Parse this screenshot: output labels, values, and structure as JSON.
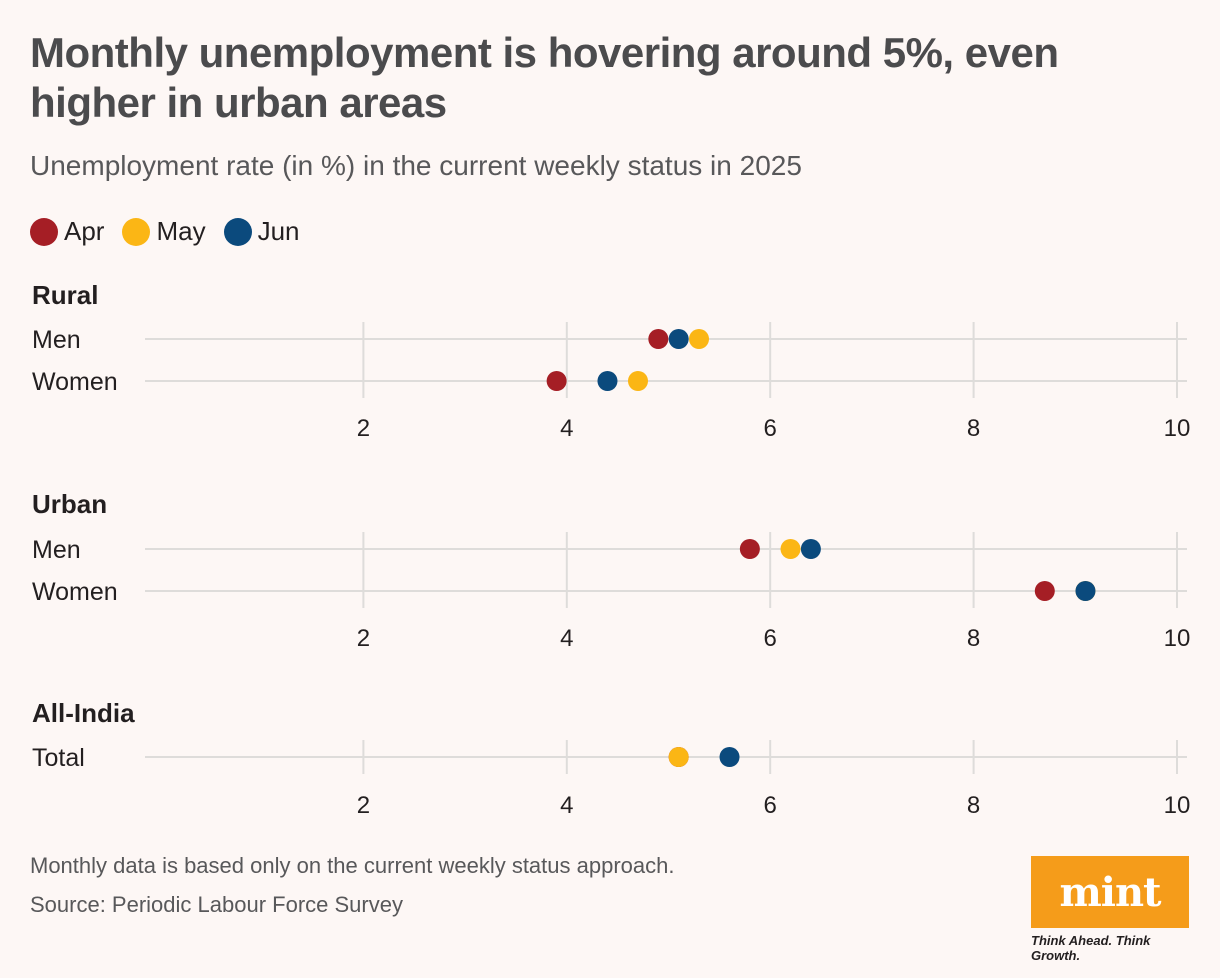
{
  "header": {
    "title": "Monthly unemployment is hovering around 5%, even higher in urban areas",
    "subtitle": "Unemployment rate (in %) in the current weekly status in 2025"
  },
  "colors": {
    "Apr": "#a51e25",
    "May": "#fbb615",
    "Jun": "#0b4a7d",
    "grid": "#dedcda",
    "brand": "#f59c1a"
  },
  "legend": [
    {
      "label": "Apr",
      "color": "#a51e25"
    },
    {
      "label": "May",
      "color": "#fbb615"
    },
    {
      "label": "Jun",
      "color": "#0b4a7d"
    }
  ],
  "chart_data": [
    {
      "type": "scatter",
      "panel": "Rural",
      "categories": [
        "Men",
        "Women"
      ],
      "series": [
        {
          "name": "Apr",
          "values": [
            4.9,
            3.9
          ]
        },
        {
          "name": "May",
          "values": [
            5.3,
            4.7
          ]
        },
        {
          "name": "Jun",
          "values": [
            5.1,
            4.4
          ]
        }
      ],
      "xlim": [
        0,
        10
      ],
      "xticks": [
        2,
        4,
        6,
        8,
        10
      ],
      "grid": true
    },
    {
      "type": "scatter",
      "panel": "Urban",
      "categories": [
        "Men",
        "Women"
      ],
      "series": [
        {
          "name": "Apr",
          "values": [
            5.8,
            8.7
          ]
        },
        {
          "name": "May",
          "values": [
            6.2,
            9.1
          ]
        },
        {
          "name": "Jun",
          "values": [
            6.4,
            9.1
          ]
        }
      ],
      "xlim": [
        0,
        10
      ],
      "xticks": [
        2,
        4,
        6,
        8,
        10
      ],
      "grid": true
    },
    {
      "type": "scatter",
      "panel": "All-India",
      "categories": [
        "Total"
      ],
      "series": [
        {
          "name": "Apr",
          "values": [
            5.1
          ]
        },
        {
          "name": "May",
          "values": [
            5.1
          ]
        },
        {
          "name": "Jun",
          "values": [
            5.6
          ]
        }
      ],
      "xlim": [
        0,
        10
      ],
      "xticks": [
        2,
        4,
        6,
        8,
        10
      ],
      "grid": true
    }
  ],
  "footer": {
    "note": "Monthly data is based only on the current weekly status approach.",
    "source": "Source: Periodic Labour Force Survey",
    "brand_name": "mint",
    "tagline": "Think Ahead. Think Growth."
  }
}
